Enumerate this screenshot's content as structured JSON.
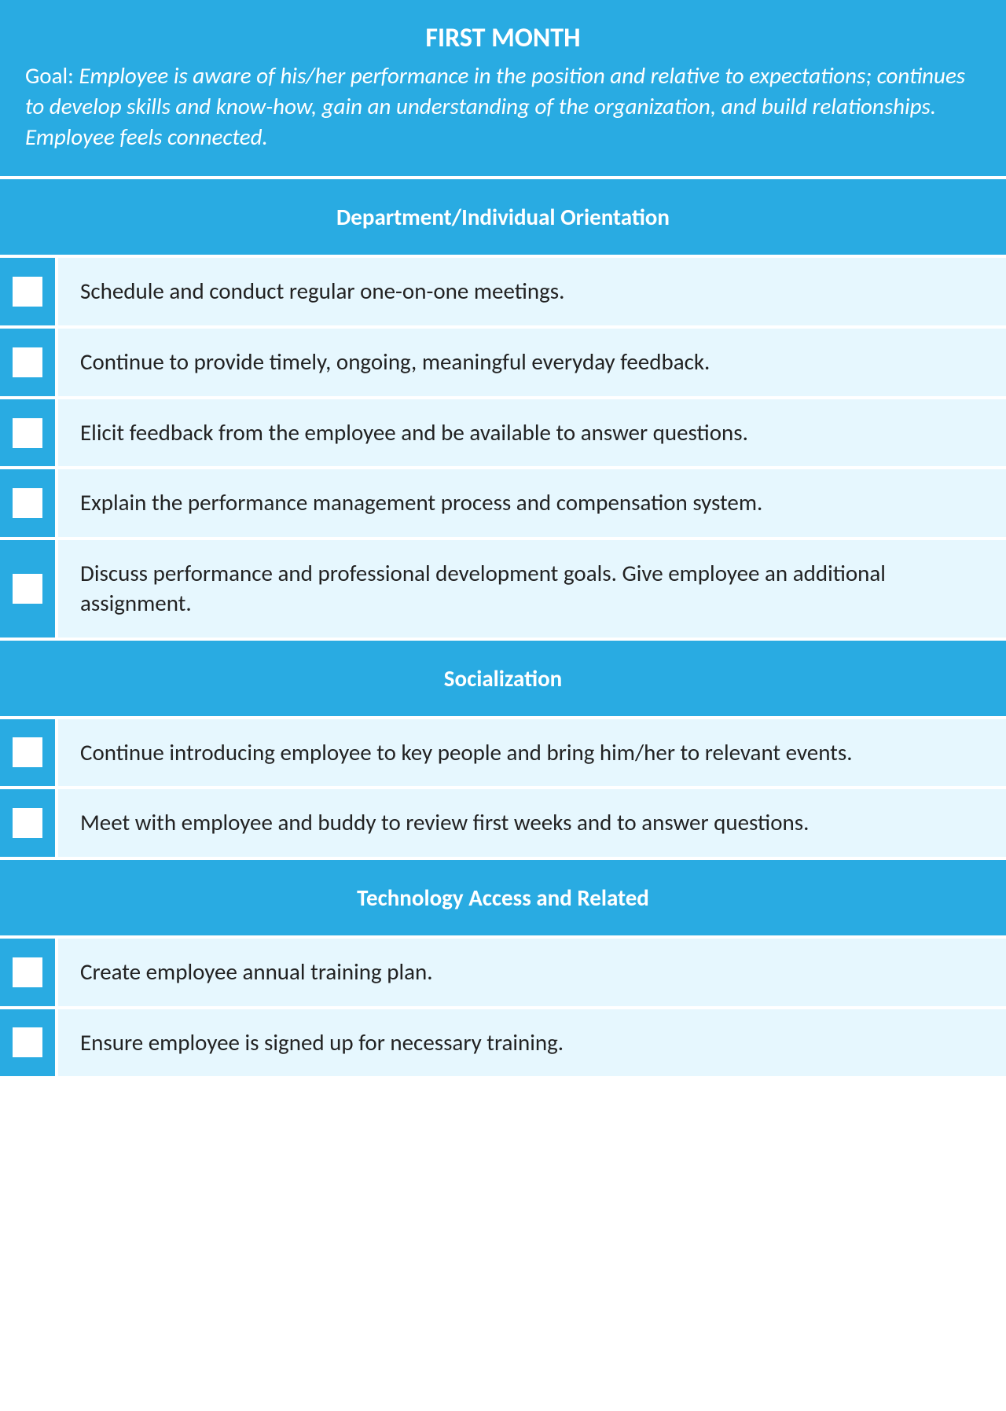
{
  "colors": {
    "primary": "#29abe2",
    "row_bg": "#e6f7fe",
    "text": "#222222",
    "header_text": "#ffffff",
    "checkbox_bg": "#ffffff"
  },
  "header": {
    "title": "FIRST MONTH",
    "goal_prefix": "Goal: ",
    "goal_body": "Employee is aware of his/her performance in the position and relative to expectations; continues to develop skills and know-how, gain an understanding of the organization, and build relationships. Employee feels connected."
  },
  "sections": [
    {
      "title": "Department/Individual Orientation",
      "items": [
        "Schedule and conduct regular one-on-one meetings.",
        "Continue to provide timely, ongoing, meaningful everyday feedback.",
        "Elicit feedback from the employee and be available to answer questions.",
        "Explain the performance management process and compensation system.",
        "Discuss performance and professional development goals. Give employee an additional assignment."
      ]
    },
    {
      "title": "Socialization",
      "items": [
        "Continue introducing employee to key people and bring him/her to relevant events.",
        "Meet with employee and buddy to review first weeks and to answer questions."
      ]
    },
    {
      "title": "Technology Access and Related",
      "items": [
        "Create employee annual training plan.",
        "Ensure employee is signed up for necessary training."
      ]
    }
  ]
}
